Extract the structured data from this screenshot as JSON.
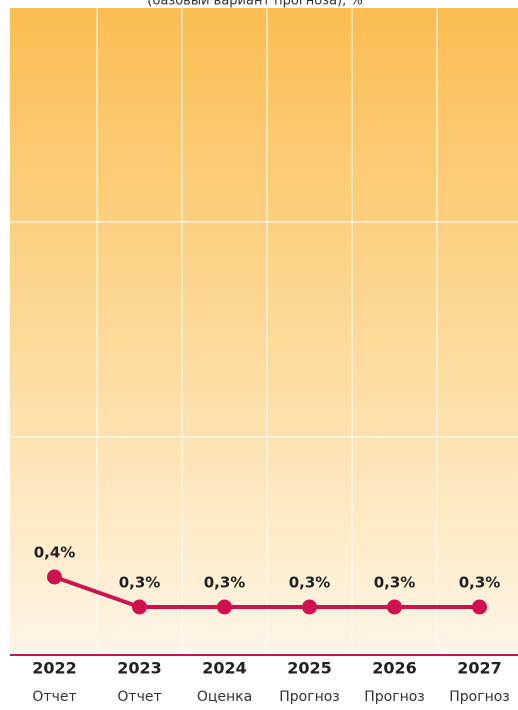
{
  "chart_data": {
    "type": "line",
    "subtitle": "(базовый вариант прогноза), %",
    "categories": [
      "2022",
      "2023",
      "2024",
      "2025",
      "2026",
      "2027"
    ],
    "sublabels": [
      "Отчет",
      "Отчет",
      "Оценка",
      "Прогноз",
      "Прогноз",
      "Прогноз"
    ],
    "series": [
      {
        "color": "#d0114f",
        "values": [
          0.4,
          0.3,
          0.3,
          0.3,
          0.3,
          0.3
        ],
        "value_labels": [
          "0,4%",
          "0,3%",
          "0,3%",
          "0,3%",
          "0,3%",
          "0,3%"
        ]
      }
    ],
    "ylim": [
      0,
      2
    ]
  }
}
